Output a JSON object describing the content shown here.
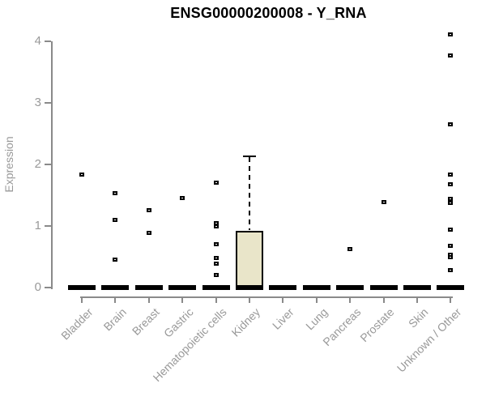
{
  "page": {
    "background": "#ffffff"
  },
  "chart_data": {
    "type": "boxplot",
    "title": "ENSG00000200008 - Y_RNA",
    "ylabel": "Expression",
    "xlabel": "",
    "ylim": [
      0,
      4.15
    ],
    "y_ticks": [
      0,
      1,
      2,
      3,
      4
    ],
    "grid": false,
    "legend": false,
    "x_label_rotation_deg": 45,
    "box_fill_color": "#E9E5C9",
    "box_border_color": "#000000",
    "axis_color": "#8a8a8a",
    "tick_label_color": "#999999",
    "categories": [
      "Bladder",
      "Brain",
      "Breast",
      "Gastric",
      "Hematopoietic cells",
      "Kidney",
      "Liver",
      "Lung",
      "Pancreas",
      "Prostate",
      "Skin",
      "Unknown / Other"
    ],
    "series": [
      {
        "name": "Bladder",
        "median": 0,
        "q1": 0,
        "q3": 0,
        "whisker_low": 0,
        "whisker_high": 0,
        "outliers": [
          1.82
        ]
      },
      {
        "name": "Brain",
        "median": 0,
        "q1": 0,
        "q3": 0,
        "whisker_low": 0,
        "whisker_high": 0,
        "outliers": [
          1.52,
          1.09,
          0.45
        ]
      },
      {
        "name": "Breast",
        "median": 0,
        "q1": 0,
        "q3": 0,
        "whisker_low": 0,
        "whisker_high": 0,
        "outliers": [
          1.25,
          0.88
        ]
      },
      {
        "name": "Gastric",
        "median": 0,
        "q1": 0,
        "q3": 0,
        "whisker_low": 0,
        "whisker_high": 0,
        "outliers": [
          1.44
        ]
      },
      {
        "name": "Hematopoietic cells",
        "median": 0,
        "q1": 0,
        "q3": 0,
        "whisker_low": 0,
        "whisker_high": 0,
        "outliers": [
          1.7,
          1.04,
          0.99,
          0.69,
          0.47,
          0.38,
          0.2
        ]
      },
      {
        "name": "Kidney",
        "median": 0,
        "q1": 0,
        "q3": 0.92,
        "whisker_low": 0,
        "whisker_high": 2.13,
        "outliers": []
      },
      {
        "name": "Liver",
        "median": 0,
        "q1": 0,
        "q3": 0,
        "whisker_low": 0,
        "whisker_high": 0,
        "outliers": []
      },
      {
        "name": "Lung",
        "median": 0,
        "q1": 0,
        "q3": 0,
        "whisker_low": 0,
        "whisker_high": 0,
        "outliers": []
      },
      {
        "name": "Pancreas",
        "median": 0,
        "q1": 0,
        "q3": 0,
        "whisker_low": 0,
        "whisker_high": 0,
        "outliers": [
          0.62
        ]
      },
      {
        "name": "Prostate",
        "median": 0,
        "q1": 0,
        "q3": 0,
        "whisker_low": 0,
        "whisker_high": 0,
        "outliers": [
          1.38
        ]
      },
      {
        "name": "Skin",
        "median": 0,
        "q1": 0,
        "q3": 0,
        "whisker_low": 0,
        "whisker_high": 0,
        "outliers": []
      },
      {
        "name": "Unknown / Other",
        "median": 0,
        "q1": 0,
        "q3": 0,
        "whisker_low": 0,
        "whisker_high": 0,
        "outliers": [
          4.1,
          3.76,
          2.64,
          1.83,
          1.67,
          1.43,
          1.37,
          0.93,
          0.67,
          0.53,
          0.48,
          0.28
        ]
      }
    ]
  }
}
